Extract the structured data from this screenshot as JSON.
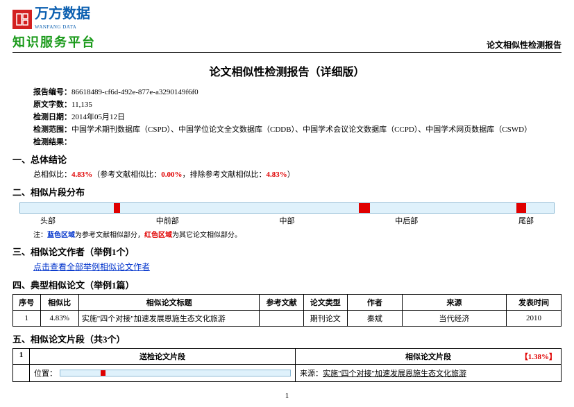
{
  "header": {
    "logo_cn": "万方数据",
    "logo_en": "WANFANG DATA",
    "logo_sub": "知识服务平台",
    "right": "论文相似性检测报告"
  },
  "title": "论文相似性检测报告（详细版）",
  "meta": {
    "report_no_label": "报告编号：",
    "report_no": "86618489-cf6d-492e-877e-a3290149f6f0",
    "orig_words_label": "原文字数：",
    "orig_words": "11,135",
    "date_label": "检测日期：",
    "date": "2014年05月12日",
    "scope_label": "检测范围：",
    "scope": "中国学术期刊数据库（CSPD）、中国学位论文全文数据库（CDDB）、中国学术会议论文数据库（CCPD）、中国学术网页数据库（CSWD）",
    "result_label": "检测结果："
  },
  "sections": {
    "s1": "一、总体结论",
    "s1_line_prefix": "总相似比：",
    "s1_val1": "4.83%",
    "s1_mid": "（参考文献相似比：",
    "s1_val2": "0.00%",
    "s1_mid2": "，排除参考文献相似比：",
    "s1_val3": "4.83%",
    "s1_end": "）",
    "s2": "二、相似片段分布",
    "bar_labels": [
      "头部",
      "中前部",
      "中部",
      "中后部",
      "尾部"
    ],
    "bar_segments": [
      {
        "left_pct": 17.5,
        "width_pct": 1.2
      },
      {
        "left_pct": 63.5,
        "width_pct": 2.0
      },
      {
        "left_pct": 93.0,
        "width_pct": 1.8
      }
    ],
    "note_prefix": "注：",
    "note_blue": "蓝色区域",
    "note_t1": "为参考文献相似部分，",
    "note_red": "红色区域",
    "note_t2": "为其它论文相似部分。",
    "s3": "三、相似论文作者（举例1个）",
    "s3_link": "点击查看全部举例相似论文作者",
    "s4": "四、典型相似论文（举例1篇）",
    "s5": "五、相似论文片段（共3个）"
  },
  "table": {
    "headers": [
      "序号",
      "相似比",
      "相似论文标题",
      "参考文献",
      "论文类型",
      "作者",
      "来源",
      "发表时间"
    ],
    "row": [
      "1",
      "4.83%",
      "实施\"四个对接\"加速发展恩施生态文化旅游",
      "",
      "期刊论文",
      "秦斌",
      "当代经济",
      "2010"
    ],
    "col_widths": [
      "5%",
      "7%",
      "33%",
      "8%",
      "8%",
      "10%",
      "19%",
      "10%"
    ]
  },
  "fragment": {
    "num": "1",
    "col_left": "送检论文片段",
    "col_right": "相似论文片段",
    "pct": "【1.38%】",
    "pos_label": "位置：",
    "pos_mark": {
      "left_pct": 17.5,
      "width_pct": 2
    },
    "source_label": "来源：",
    "source_text": "实施\"四个对接\"加速发展恩施生态文化旅游"
  },
  "page": "1"
}
